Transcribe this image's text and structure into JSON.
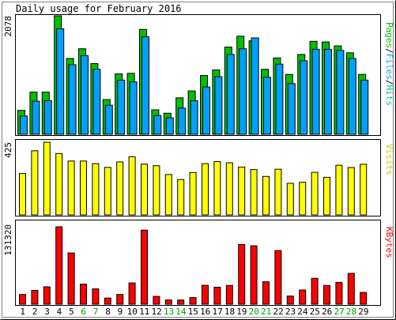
{
  "chart_data": {
    "type": "bar",
    "title": "Daily usage for February 2016",
    "categories": [
      "1",
      "2",
      "3",
      "4",
      "5",
      "6",
      "7",
      "8",
      "9",
      "10",
      "11",
      "12",
      "13",
      "14",
      "15",
      "16",
      "17",
      "18",
      "19",
      "20",
      "21",
      "22",
      "23",
      "24",
      "25",
      "26",
      "27",
      "28",
      "29"
    ],
    "weekend_days": [
      "6",
      "7",
      "13",
      "14",
      "20",
      "21",
      "27",
      "28"
    ],
    "colors": {
      "pages": "#00c000",
      "files": "#00a0ff",
      "hits": "#00c0a0",
      "visits": "#ffff00",
      "kbytes": "#ff0000",
      "weekday_label": "#000000",
      "weekend_label": "#00a000"
    },
    "panels": [
      {
        "id": "hits",
        "ymax_label": "2078",
        "ymax": 2078,
        "side_labels": [
          {
            "text": "Pages",
            "color": "#00c000"
          },
          {
            "text": "/",
            "color": "#000000"
          },
          {
            "text": "Files",
            "color": "#00a0ff"
          },
          {
            "text": "/",
            "color": "#000000"
          },
          {
            "text": "Hits",
            "color": "#00c0a0"
          }
        ],
        "series": [
          {
            "name": "Hits",
            "values": [
              420,
              740,
              740,
              2078,
              1330,
              1500,
              1240,
              610,
              1060,
              1070,
              1840,
              430,
              370,
              640,
              760,
              1030,
              1130,
              1530,
              1720,
              1640,
              1140,
              1340,
              1050,
              1400,
              1630,
              1620,
              1550,
              1430,
              1050
            ]
          },
          {
            "name": "Files",
            "values": [
              320,
              580,
              590,
              1850,
              1220,
              1380,
              1140,
              510,
              950,
              920,
              1710,
              330,
              290,
              460,
              590,
              830,
              1010,
              1400,
              1500,
              1690,
              1000,
              1230,
              890,
              1290,
              1490,
              1490,
              1470,
              1330,
              950
            ]
          }
        ]
      },
      {
        "id": "visits",
        "ymax_label": "425",
        "ymax": 425,
        "side_labels": [
          {
            "text": "Visits",
            "color": "#c8c800"
          }
        ],
        "series": [
          {
            "name": "Visits",
            "values": [
              242,
              375,
              425,
              359,
              315,
              315,
              300,
              278,
              310,
              340,
              297,
              288,
              236,
              207,
              248,
              300,
              312,
              305,
              280,
              265,
              225,
              267,
              185,
              191,
              249,
              220,
              290,
              277,
              296
            ]
          }
        ]
      },
      {
        "id": "kbytes",
        "ymax_label": "131320",
        "ymax": 131320,
        "side_labels": [
          {
            "text": "KBytes",
            "color": "#ff0000"
          }
        ],
        "series": [
          {
            "name": "KBytes",
            "values": [
              16500,
              23500,
              29500,
              131320,
              87000,
              34000,
              26000,
              10400,
              16500,
              36000,
              125500,
              13300,
              7100,
              7100,
              11200,
              32000,
              28800,
              31900,
              101300,
              99000,
              38000,
              91000,
              13800,
              24100,
              43900,
              31700,
              37000,
              52300,
              19900
            ]
          }
        ]
      }
    ]
  }
}
